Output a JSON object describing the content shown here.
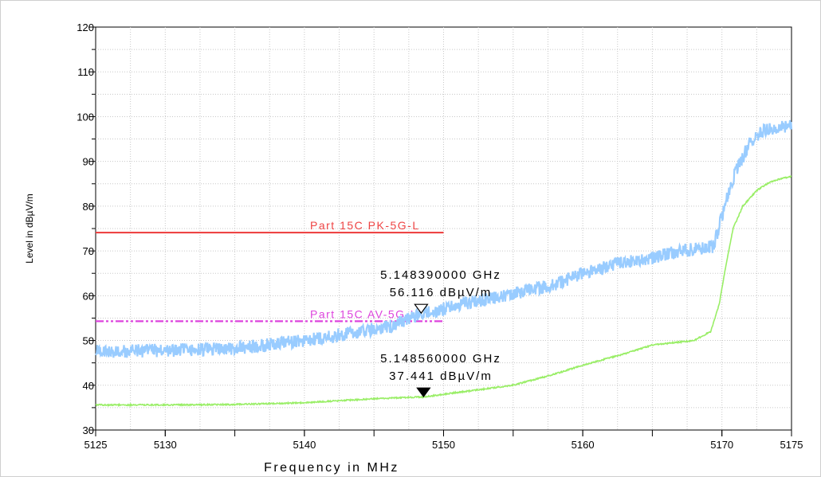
{
  "chart_data": {
    "type": "line",
    "title": "",
    "xlabel": "Frequency in MHz",
    "ylabel": "Level in dBµV/m",
    "xlim": [
      5125,
      5175
    ],
    "ylim": [
      30,
      120
    ],
    "x_ticks": [
      5125,
      5130,
      5140,
      5150,
      5160,
      5170,
      5175
    ],
    "y_ticks": [
      30,
      40,
      50,
      60,
      70,
      80,
      90,
      100,
      110,
      120
    ],
    "grid": true,
    "series": [
      {
        "kind": "peak-trace",
        "color": "#99ccff",
        "noise": 1.5,
        "x": [
          5125,
          5130,
          5135,
          5140,
          5143,
          5146,
          5148.4,
          5150,
          5152,
          5155,
          5158,
          5160,
          5163,
          5165,
          5167,
          5169.4,
          5170.2,
          5171,
          5172,
          5173,
          5174,
          5175
        ],
        "y": [
          47.5,
          47.8,
          48.2,
          50,
          51.5,
          53,
          56.1,
          57,
          58.5,
          60.5,
          62.5,
          65,
          67.5,
          68.5,
          70,
          71,
          80,
          88,
          94,
          97,
          97.8,
          98
        ]
      },
      {
        "kind": "average-trace",
        "color": "#99ee66",
        "noise": 0.15,
        "x": [
          5125,
          5130,
          5135,
          5140,
          5145,
          5148.6,
          5150,
          5153,
          5155,
          5158,
          5160,
          5163,
          5165,
          5168,
          5169.2,
          5169.8,
          5170.3,
          5170.8,
          5171.5,
          5172.5,
          5173.5,
          5175
        ],
        "y": [
          35.6,
          35.6,
          35.7,
          36.1,
          37,
          37.4,
          38,
          39.2,
          40,
          42.5,
          44.5,
          47,
          49,
          50,
          52,
          58,
          67,
          75,
          80,
          83.5,
          85.5,
          86.7
        ]
      }
    ],
    "limit_lines": [
      {
        "name": "Part 15C PK-5G-L",
        "value": 74.1,
        "x_start": 5125,
        "x_end": 5150,
        "color": "#ee4444",
        "style": "solid"
      },
      {
        "name": "Part 15C AV-5G-L",
        "value": 54.3,
        "x_start": 5125,
        "x_end": 5150,
        "color": "#dd44dd",
        "style": "dash-dot"
      }
    ],
    "markers": [
      {
        "freq_label": "5.148390000 GHz",
        "level_label": "56.116 dBµV/m",
        "x": 5148.39,
        "y": 56.116,
        "symbol": "open-triangle-down"
      },
      {
        "freq_label": "5.148560000 GHz",
        "level_label": "37.441 dBµV/m",
        "x": 5148.56,
        "y": 37.441,
        "symbol": "filled-triangle-down"
      }
    ]
  }
}
